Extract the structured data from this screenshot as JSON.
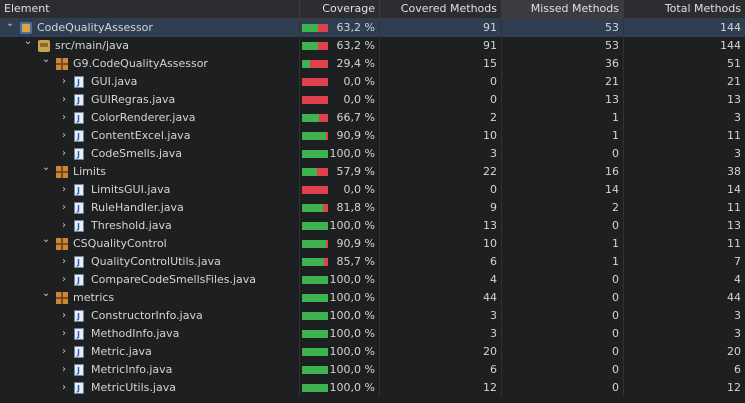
{
  "header": {
    "element": "Element",
    "coverage": "Coverage",
    "covered_methods": "Covered Methods",
    "missed_methods": "Missed Methods",
    "total_methods": "Total Methods"
  },
  "colors": {
    "covered": "#3fb34f",
    "missed": "#e0414f",
    "selection": "#2f3e50"
  },
  "rows": [
    {
      "name": "CodeQualityAssessor",
      "level": 0,
      "icon": "project-icon",
      "coverage": "63,2 %",
      "covered": "91",
      "missed": "53",
      "total": "144",
      "ratio": 0.632,
      "selected": true
    },
    {
      "name": "src/main/java",
      "level": 1,
      "icon": "source-folder-icon",
      "coverage": "63,2 %",
      "covered": "91",
      "missed": "53",
      "total": "144",
      "ratio": 0.632
    },
    {
      "name": "G9.CodeQualityAssessor",
      "level": 2,
      "icon": "package-icon",
      "coverage": "29,4 %",
      "covered": "15",
      "missed": "36",
      "total": "51",
      "ratio": 0.294
    },
    {
      "name": "GUI.java",
      "level": 3,
      "icon": "java-file-icon",
      "coverage": "0,0 %",
      "covered": "0",
      "missed": "21",
      "total": "21",
      "ratio": 0.0
    },
    {
      "name": "GUIRegras.java",
      "level": 3,
      "icon": "java-file-icon",
      "coverage": "0,0 %",
      "covered": "0",
      "missed": "13",
      "total": "13",
      "ratio": 0.0
    },
    {
      "name": "ColorRenderer.java",
      "level": 3,
      "icon": "java-file-icon",
      "coverage": "66,7 %",
      "covered": "2",
      "missed": "1",
      "total": "3",
      "ratio": 0.667
    },
    {
      "name": "ContentExcel.java",
      "level": 3,
      "icon": "java-file-icon",
      "coverage": "90,9 %",
      "covered": "10",
      "missed": "1",
      "total": "11",
      "ratio": 0.909
    },
    {
      "name": "CodeSmells.java",
      "level": 3,
      "icon": "java-file-icon",
      "coverage": "100,0 %",
      "covered": "3",
      "missed": "0",
      "total": "3",
      "ratio": 1.0
    },
    {
      "name": "Limits",
      "level": 2,
      "icon": "package-icon",
      "coverage": "57,9 %",
      "covered": "22",
      "missed": "16",
      "total": "38",
      "ratio": 0.579
    },
    {
      "name": "LimitsGUI.java",
      "level": 3,
      "icon": "java-file-icon",
      "coverage": "0,0 %",
      "covered": "0",
      "missed": "14",
      "total": "14",
      "ratio": 0.0
    },
    {
      "name": "RuleHandler.java",
      "level": 3,
      "icon": "java-file-icon",
      "coverage": "81,8 %",
      "covered": "9",
      "missed": "2",
      "total": "11",
      "ratio": 0.818
    },
    {
      "name": "Threshold.java",
      "level": 3,
      "icon": "java-file-icon",
      "coverage": "100,0 %",
      "covered": "13",
      "missed": "0",
      "total": "13",
      "ratio": 1.0
    },
    {
      "name": "CSQualityControl",
      "level": 2,
      "icon": "package-icon",
      "coverage": "90,9 %",
      "covered": "10",
      "missed": "1",
      "total": "11",
      "ratio": 0.909
    },
    {
      "name": "QualityControlUtils.java",
      "level": 3,
      "icon": "java-file-icon",
      "coverage": "85,7 %",
      "covered": "6",
      "missed": "1",
      "total": "7",
      "ratio": 0.857
    },
    {
      "name": "CompareCodeSmellsFiles.java",
      "level": 3,
      "icon": "java-file-icon",
      "coverage": "100,0 %",
      "covered": "4",
      "missed": "0",
      "total": "4",
      "ratio": 1.0
    },
    {
      "name": "metrics",
      "level": 2,
      "icon": "package-icon",
      "coverage": "100,0 %",
      "covered": "44",
      "missed": "0",
      "total": "44",
      "ratio": 1.0
    },
    {
      "name": "ConstructorInfo.java",
      "level": 3,
      "icon": "java-file-icon",
      "coverage": "100,0 %",
      "covered": "3",
      "missed": "0",
      "total": "3",
      "ratio": 1.0
    },
    {
      "name": "MethodInfo.java",
      "level": 3,
      "icon": "java-file-icon",
      "coverage": "100,0 %",
      "covered": "3",
      "missed": "0",
      "total": "3",
      "ratio": 1.0
    },
    {
      "name": "Metric.java",
      "level": 3,
      "icon": "java-file-icon",
      "coverage": "100,0 %",
      "covered": "20",
      "missed": "0",
      "total": "20",
      "ratio": 1.0
    },
    {
      "name": "MetricInfo.java",
      "level": 3,
      "icon": "java-file-icon",
      "coverage": "100,0 %",
      "covered": "6",
      "missed": "0",
      "total": "6",
      "ratio": 1.0
    },
    {
      "name": "MetricUtils.java",
      "level": 3,
      "icon": "java-file-icon",
      "coverage": "100,0 %",
      "covered": "12",
      "missed": "0",
      "total": "12",
      "ratio": 1.0
    }
  ]
}
